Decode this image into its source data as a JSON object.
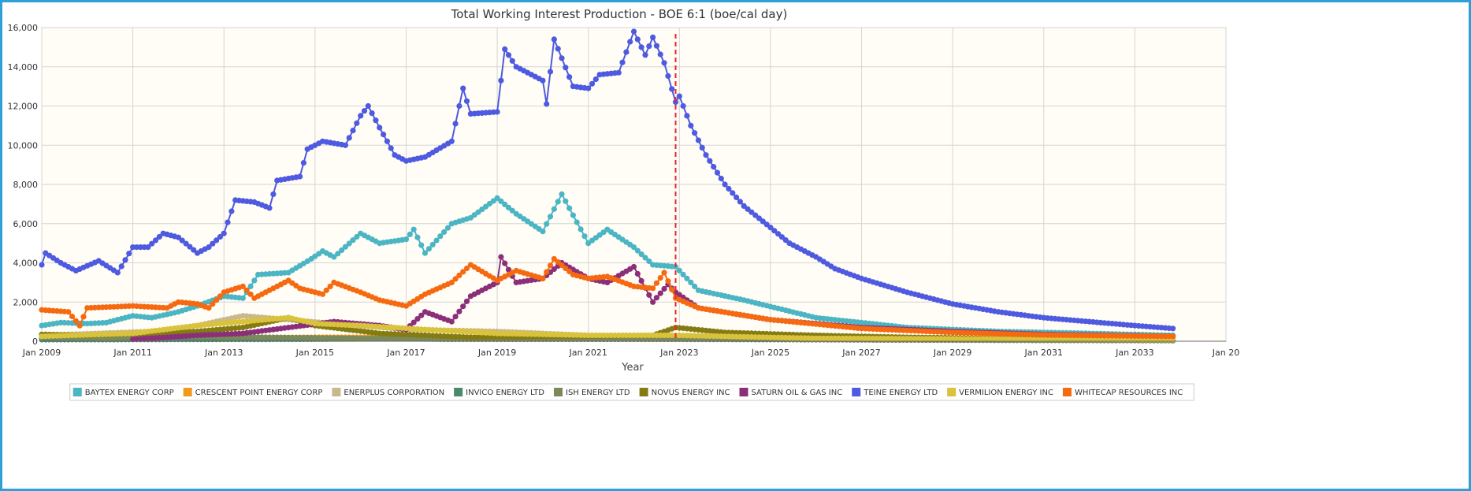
{
  "chart_data": {
    "type": "line",
    "title": "Total Working Interest Production - BOE 6:1 (boe/cal day)",
    "xlabel": "Year",
    "ylabel": "",
    "ylim": [
      0,
      16000
    ],
    "xlim": [
      "2009-01",
      "2035-01"
    ],
    "x_ticks": [
      "Jan 2009",
      "Jan 2011",
      "Jan 2013",
      "Jan 2015",
      "Jan 2017",
      "Jan 2019",
      "Jan 2021",
      "Jan 2023",
      "Jan 2025",
      "Jan 2027",
      "Jan 2029",
      "Jan 2031",
      "Jan 2033",
      "Jan 20"
    ],
    "y_ticks": [
      "0",
      "2,000",
      "4,000",
      "6,000",
      "8,000",
      "10,000",
      "12,000",
      "14,000",
      "16,000"
    ],
    "grid": true,
    "legend_position": "bottom",
    "forecast_marker": {
      "x": "2022-12",
      "style": "dashed",
      "color": "#e8262a"
    },
    "series": [
      {
        "name": "BAYTEX ENERGY CORP",
        "color": "#4cb5c4",
        "points": [
          [
            "2009-01",
            800
          ],
          [
            "2009-06",
            950
          ],
          [
            "2010-01",
            900
          ],
          [
            "2010-06",
            950
          ],
          [
            "2011-01",
            1300
          ],
          [
            "2011-06",
            1200
          ],
          [
            "2012-01",
            1500
          ],
          [
            "2012-06",
            1800
          ],
          [
            "2013-01",
            2300
          ],
          [
            "2013-06",
            2200
          ],
          [
            "2013-10",
            3400
          ],
          [
            "2014-06",
            3500
          ],
          [
            "2014-12",
            4200
          ],
          [
            "2015-03",
            4600
          ],
          [
            "2015-06",
            4300
          ],
          [
            "2016-01",
            5500
          ],
          [
            "2016-06",
            5000
          ],
          [
            "2017-01",
            5200
          ],
          [
            "2017-03",
            5700
          ],
          [
            "2017-06",
            4500
          ],
          [
            "2018-01",
            6000
          ],
          [
            "2018-06",
            6300
          ],
          [
            "2019-01",
            7300
          ],
          [
            "2019-06",
            6500
          ],
          [
            "2020-01",
            5600
          ],
          [
            "2020-06",
            7500
          ],
          [
            "2021-01",
            5000
          ],
          [
            "2021-06",
            5700
          ],
          [
            "2022-01",
            4800
          ],
          [
            "2022-06",
            3900
          ],
          [
            "2022-12",
            3800
          ],
          [
            "2023-06",
            2600
          ],
          [
            "2024-06",
            2100
          ],
          [
            "2026-01",
            1200
          ],
          [
            "2028-01",
            700
          ],
          [
            "2030-01",
            500
          ],
          [
            "2032-01",
            400
          ],
          [
            "2033-11",
            300
          ]
        ]
      },
      {
        "name": "CRESCENT POINT ENERGY CORP",
        "color": "#f29a1f",
        "points": [
          [
            "2009-01",
            100
          ],
          [
            "2015-01",
            200
          ],
          [
            "2019-01",
            200
          ],
          [
            "2022-12",
            200
          ],
          [
            "2025-01",
            120
          ],
          [
            "2030-01",
            70
          ],
          [
            "2033-11",
            50
          ]
        ]
      },
      {
        "name": "ENERPLUS CORPORATION",
        "color": "#c9b98a",
        "points": [
          [
            "2009-01",
            300
          ],
          [
            "2011-06",
            500
          ],
          [
            "2012-06",
            800
          ],
          [
            "2013-06",
            1300
          ],
          [
            "2014-06",
            1100
          ],
          [
            "2015-06",
            900
          ],
          [
            "2017-01",
            600
          ],
          [
            "2019-01",
            500
          ],
          [
            "2021-01",
            300
          ],
          [
            "2022-12",
            250
          ],
          [
            "2026-01",
            150
          ],
          [
            "2033-11",
            80
          ]
        ]
      },
      {
        "name": "INVICO ENERGY LTD",
        "color": "#4a8a6a",
        "points": [
          [
            "2009-01",
            80
          ],
          [
            "2014-06",
            100
          ],
          [
            "2018-06",
            150
          ],
          [
            "2022-12",
            120
          ],
          [
            "2027-01",
            80
          ],
          [
            "2033-11",
            40
          ]
        ]
      },
      {
        "name": "ISH ENERGY LTD",
        "color": "#7a8a5a",
        "points": [
          [
            "2009-01",
            200
          ],
          [
            "2010-06",
            150
          ],
          [
            "2012-01",
            250
          ],
          [
            "2014-01",
            200
          ],
          [
            "2016-01",
            150
          ],
          [
            "2018-01",
            100
          ],
          [
            "2022-12",
            100
          ],
          [
            "2028-01",
            60
          ],
          [
            "2033-11",
            30
          ]
        ]
      },
      {
        "name": "NOVUS ENERGY INC",
        "color": "#857b13",
        "points": [
          [
            "2009-01",
            350
          ],
          [
            "2010-01",
            300
          ],
          [
            "2012-06",
            500
          ],
          [
            "2013-06",
            700
          ],
          [
            "2014-06",
            1200
          ],
          [
            "2015-01",
            800
          ],
          [
            "2016-06",
            400
          ],
          [
            "2018-06",
            200
          ],
          [
            "2022-06",
            300
          ],
          [
            "2022-12",
            700
          ],
          [
            "2024-01",
            450
          ],
          [
            "2026-01",
            300
          ],
          [
            "2028-01",
            200
          ],
          [
            "2030-01",
            150
          ],
          [
            "2033-11",
            100
          ]
        ]
      },
      {
        "name": "SATURN OIL & GAS INC",
        "color": "#8b2f7a",
        "points": [
          [
            "2011-01",
            100
          ],
          [
            "2012-06",
            300
          ],
          [
            "2013-06",
            400
          ],
          [
            "2014-06",
            700
          ],
          [
            "2015-06",
            1000
          ],
          [
            "2016-06",
            800
          ],
          [
            "2017-01",
            600
          ],
          [
            "2017-06",
            1500
          ],
          [
            "2018-01",
            1000
          ],
          [
            "2018-06",
            2300
          ],
          [
            "2019-01",
            3000
          ],
          [
            "2019-02",
            4300
          ],
          [
            "2019-06",
            3000
          ],
          [
            "2020-01",
            3200
          ],
          [
            "2020-06",
            4000
          ],
          [
            "2021-01",
            3200
          ],
          [
            "2021-06",
            3000
          ],
          [
            "2022-01",
            3800
          ],
          [
            "2022-06",
            2000
          ],
          [
            "2022-10",
            2900
          ],
          [
            "2022-12",
            2500
          ],
          [
            "2023-06",
            1700
          ],
          [
            "2025-01",
            1100
          ],
          [
            "2027-01",
            700
          ],
          [
            "2029-01",
            500
          ],
          [
            "2031-01",
            350
          ],
          [
            "2033-11",
            250
          ]
        ]
      },
      {
        "name": "TEINE ENERGY LTD",
        "color": "#4e5ae0",
        "points": [
          [
            "2009-01",
            3900
          ],
          [
            "2009-02",
            4500
          ],
          [
            "2009-06",
            4000
          ],
          [
            "2009-10",
            3600
          ],
          [
            "2010-04",
            4100
          ],
          [
            "2010-09",
            3500
          ],
          [
            "2011-01",
            4800
          ],
          [
            "2011-05",
            4800
          ],
          [
            "2011-09",
            5500
          ],
          [
            "2012-01",
            5300
          ],
          [
            "2012-06",
            4500
          ],
          [
            "2012-09",
            4800
          ],
          [
            "2013-01",
            5500
          ],
          [
            "2013-04",
            7200
          ],
          [
            "2013-09",
            7100
          ],
          [
            "2014-01",
            6800
          ],
          [
            "2014-03",
            8200
          ],
          [
            "2014-09",
            8400
          ],
          [
            "2014-11",
            9800
          ],
          [
            "2015-03",
            10200
          ],
          [
            "2015-09",
            10000
          ],
          [
            "2016-01",
            11500
          ],
          [
            "2016-03",
            12000
          ],
          [
            "2016-06",
            10900
          ],
          [
            "2016-10",
            9500
          ],
          [
            "2017-01",
            9200
          ],
          [
            "2017-06",
            9400
          ],
          [
            "2018-01",
            10200
          ],
          [
            "2018-04",
            12900
          ],
          [
            "2018-06",
            11600
          ],
          [
            "2019-01",
            11700
          ],
          [
            "2019-03",
            14900
          ],
          [
            "2019-06",
            14000
          ],
          [
            "2020-01",
            13300
          ],
          [
            "2020-02",
            12100
          ],
          [
            "2020-04",
            15400
          ],
          [
            "2020-09",
            13000
          ],
          [
            "2021-01",
            12900
          ],
          [
            "2021-04",
            13600
          ],
          [
            "2021-09",
            13700
          ],
          [
            "2022-01",
            15800
          ],
          [
            "2022-04",
            14600
          ],
          [
            "2022-06",
            15500
          ],
          [
            "2022-09",
            14200
          ],
          [
            "2022-12",
            12200
          ],
          [
            "2023-01",
            12500
          ],
          [
            "2023-04",
            11000
          ],
          [
            "2023-08",
            9500
          ],
          [
            "2024-01",
            8000
          ],
          [
            "2024-06",
            6900
          ],
          [
            "2025-01",
            5800
          ],
          [
            "2025-06",
            5000
          ],
          [
            "2026-01",
            4300
          ],
          [
            "2026-06",
            3700
          ],
          [
            "2027-01",
            3200
          ],
          [
            "2028-01",
            2500
          ],
          [
            "2029-01",
            1900
          ],
          [
            "2030-01",
            1500
          ],
          [
            "2031-01",
            1200
          ],
          [
            "2032-01",
            1000
          ],
          [
            "2033-01",
            800
          ],
          [
            "2033-11",
            650
          ]
        ]
      },
      {
        "name": "VERMILION ENERGY INC",
        "color": "#d9c23c",
        "points": [
          [
            "2009-01",
            250
          ],
          [
            "2011-01",
            400
          ],
          [
            "2012-06",
            800
          ],
          [
            "2013-06",
            1000
          ],
          [
            "2014-06",
            1200
          ],
          [
            "2015-01",
            900
          ],
          [
            "2016-01",
            800
          ],
          [
            "2017-06",
            600
          ],
          [
            "2019-01",
            400
          ],
          [
            "2021-01",
            300
          ],
          [
            "2022-12",
            300
          ],
          [
            "2026-01",
            150
          ],
          [
            "2033-11",
            80
          ]
        ]
      },
      {
        "name": "WHITECAP RESOURCES INC",
        "color": "#f56a10",
        "points": [
          [
            "2009-01",
            1600
          ],
          [
            "2009-08",
            1500
          ],
          [
            "2009-11",
            800
          ],
          [
            "2010-01",
            1700
          ],
          [
            "2011-01",
            1800
          ],
          [
            "2011-10",
            1700
          ],
          [
            "2012-01",
            2000
          ],
          [
            "2012-06",
            1900
          ],
          [
            "2012-09",
            1700
          ],
          [
            "2013-01",
            2500
          ],
          [
            "2013-06",
            2800
          ],
          [
            "2013-09",
            2200
          ],
          [
            "2014-06",
            3100
          ],
          [
            "2014-09",
            2700
          ],
          [
            "2015-03",
            2400
          ],
          [
            "2015-06",
            3000
          ],
          [
            "2016-01",
            2500
          ],
          [
            "2016-06",
            2100
          ],
          [
            "2017-01",
            1800
          ],
          [
            "2017-06",
            2400
          ],
          [
            "2018-01",
            3000
          ],
          [
            "2018-06",
            3900
          ],
          [
            "2019-01",
            3100
          ],
          [
            "2019-06",
            3600
          ],
          [
            "2020-01",
            3200
          ],
          [
            "2020-04",
            4200
          ],
          [
            "2020-09",
            3400
          ],
          [
            "2021-01",
            3200
          ],
          [
            "2021-06",
            3300
          ],
          [
            "2022-01",
            2800
          ],
          [
            "2022-06",
            2700
          ],
          [
            "2022-09",
            3500
          ],
          [
            "2022-12",
            2200
          ],
          [
            "2023-06",
            1700
          ],
          [
            "2025-01",
            1100
          ],
          [
            "2027-01",
            650
          ],
          [
            "2029-01",
            450
          ],
          [
            "2031-01",
            320
          ],
          [
            "2033-11",
            250
          ]
        ]
      }
    ]
  }
}
